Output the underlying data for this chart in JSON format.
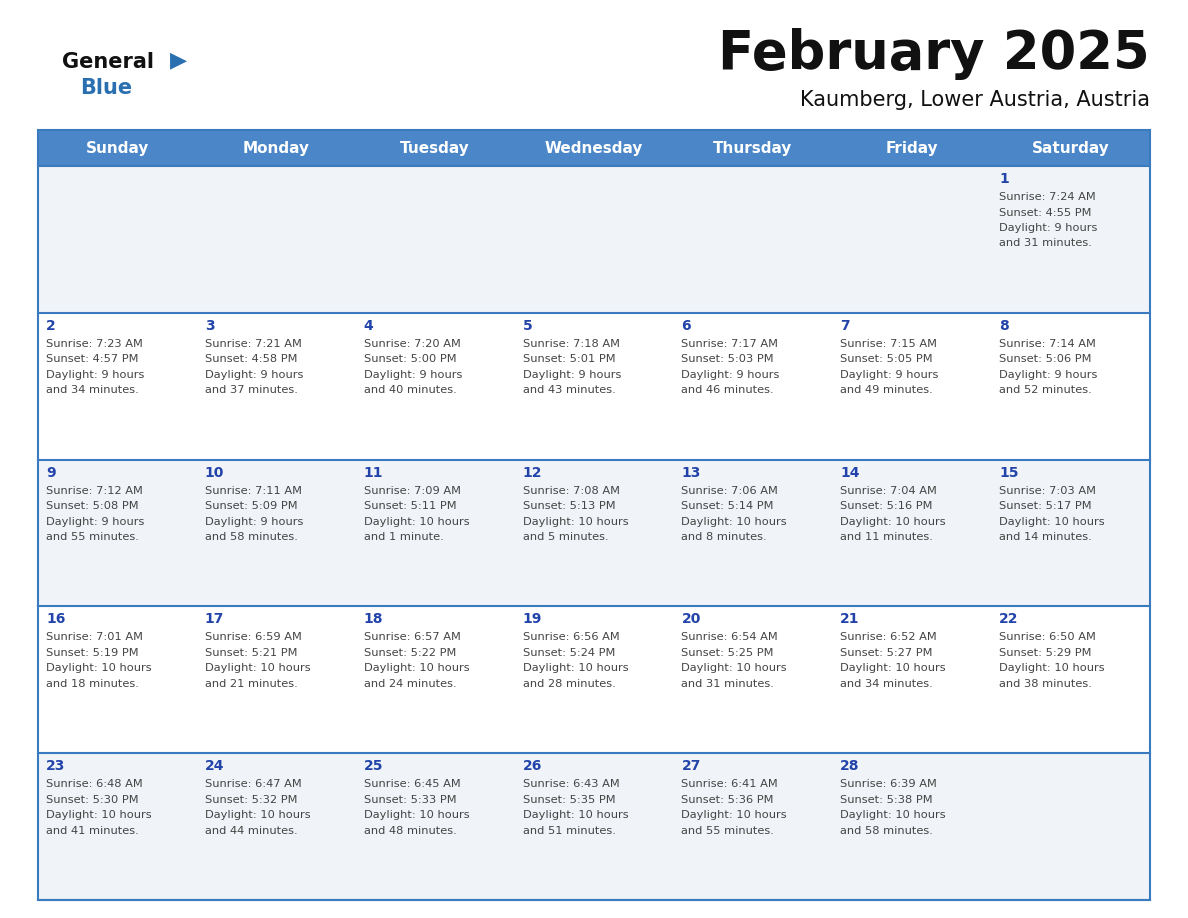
{
  "title": "February 2025",
  "subtitle": "Kaumberg, Lower Austria, Austria",
  "header_bg": "#4a86c8",
  "header_text": "#ffffff",
  "weekdays": [
    "Sunday",
    "Monday",
    "Tuesday",
    "Wednesday",
    "Thursday",
    "Friday",
    "Saturday"
  ],
  "row_bg_even": "#f0f4f8",
  "row_bg_odd": "#ffffff",
  "cell_border_color": "#3a7abf",
  "day_num_color": "#2244aa",
  "info_color": "#444444",
  "title_color": "#111111",
  "subtitle_color": "#111111",
  "logo_general_color": "#111111",
  "logo_blue_color": "#2a6fb0",
  "calendar": [
    [
      null,
      null,
      null,
      null,
      null,
      null,
      {
        "day": 1,
        "rise": "7:24 AM",
        "set": "4:55 PM",
        "light": "9 hours\nand 31 minutes."
      }
    ],
    [
      {
        "day": 2,
        "rise": "7:23 AM",
        "set": "4:57 PM",
        "light": "9 hours\nand 34 minutes."
      },
      {
        "day": 3,
        "rise": "7:21 AM",
        "set": "4:58 PM",
        "light": "9 hours\nand 37 minutes."
      },
      {
        "day": 4,
        "rise": "7:20 AM",
        "set": "5:00 PM",
        "light": "9 hours\nand 40 minutes."
      },
      {
        "day": 5,
        "rise": "7:18 AM",
        "set": "5:01 PM",
        "light": "9 hours\nand 43 minutes."
      },
      {
        "day": 6,
        "rise": "7:17 AM",
        "set": "5:03 PM",
        "light": "9 hours\nand 46 minutes."
      },
      {
        "day": 7,
        "rise": "7:15 AM",
        "set": "5:05 PM",
        "light": "9 hours\nand 49 minutes."
      },
      {
        "day": 8,
        "rise": "7:14 AM",
        "set": "5:06 PM",
        "light": "9 hours\nand 52 minutes."
      }
    ],
    [
      {
        "day": 9,
        "rise": "7:12 AM",
        "set": "5:08 PM",
        "light": "9 hours\nand 55 minutes."
      },
      {
        "day": 10,
        "rise": "7:11 AM",
        "set": "5:09 PM",
        "light": "9 hours\nand 58 minutes."
      },
      {
        "day": 11,
        "rise": "7:09 AM",
        "set": "5:11 PM",
        "light": "10 hours\nand 1 minute."
      },
      {
        "day": 12,
        "rise": "7:08 AM",
        "set": "5:13 PM",
        "light": "10 hours\nand 5 minutes."
      },
      {
        "day": 13,
        "rise": "7:06 AM",
        "set": "5:14 PM",
        "light": "10 hours\nand 8 minutes."
      },
      {
        "day": 14,
        "rise": "7:04 AM",
        "set": "5:16 PM",
        "light": "10 hours\nand 11 minutes."
      },
      {
        "day": 15,
        "rise": "7:03 AM",
        "set": "5:17 PM",
        "light": "10 hours\nand 14 minutes."
      }
    ],
    [
      {
        "day": 16,
        "rise": "7:01 AM",
        "set": "5:19 PM",
        "light": "10 hours\nand 18 minutes."
      },
      {
        "day": 17,
        "rise": "6:59 AM",
        "set": "5:21 PM",
        "light": "10 hours\nand 21 minutes."
      },
      {
        "day": 18,
        "rise": "6:57 AM",
        "set": "5:22 PM",
        "light": "10 hours\nand 24 minutes."
      },
      {
        "day": 19,
        "rise": "6:56 AM",
        "set": "5:24 PM",
        "light": "10 hours\nand 28 minutes."
      },
      {
        "day": 20,
        "rise": "6:54 AM",
        "set": "5:25 PM",
        "light": "10 hours\nand 31 minutes."
      },
      {
        "day": 21,
        "rise": "6:52 AM",
        "set": "5:27 PM",
        "light": "10 hours\nand 34 minutes."
      },
      {
        "day": 22,
        "rise": "6:50 AM",
        "set": "5:29 PM",
        "light": "10 hours\nand 38 minutes."
      }
    ],
    [
      {
        "day": 23,
        "rise": "6:48 AM",
        "set": "5:30 PM",
        "light": "10 hours\nand 41 minutes."
      },
      {
        "day": 24,
        "rise": "6:47 AM",
        "set": "5:32 PM",
        "light": "10 hours\nand 44 minutes."
      },
      {
        "day": 25,
        "rise": "6:45 AM",
        "set": "5:33 PM",
        "light": "10 hours\nand 48 minutes."
      },
      {
        "day": 26,
        "rise": "6:43 AM",
        "set": "5:35 PM",
        "light": "10 hours\nand 51 minutes."
      },
      {
        "day": 27,
        "rise": "6:41 AM",
        "set": "5:36 PM",
        "light": "10 hours\nand 55 minutes."
      },
      {
        "day": 28,
        "rise": "6:39 AM",
        "set": "5:38 PM",
        "light": "10 hours\nand 58 minutes."
      },
      null
    ]
  ],
  "figsize": [
    11.88,
    9.18
  ],
  "dpi": 100
}
